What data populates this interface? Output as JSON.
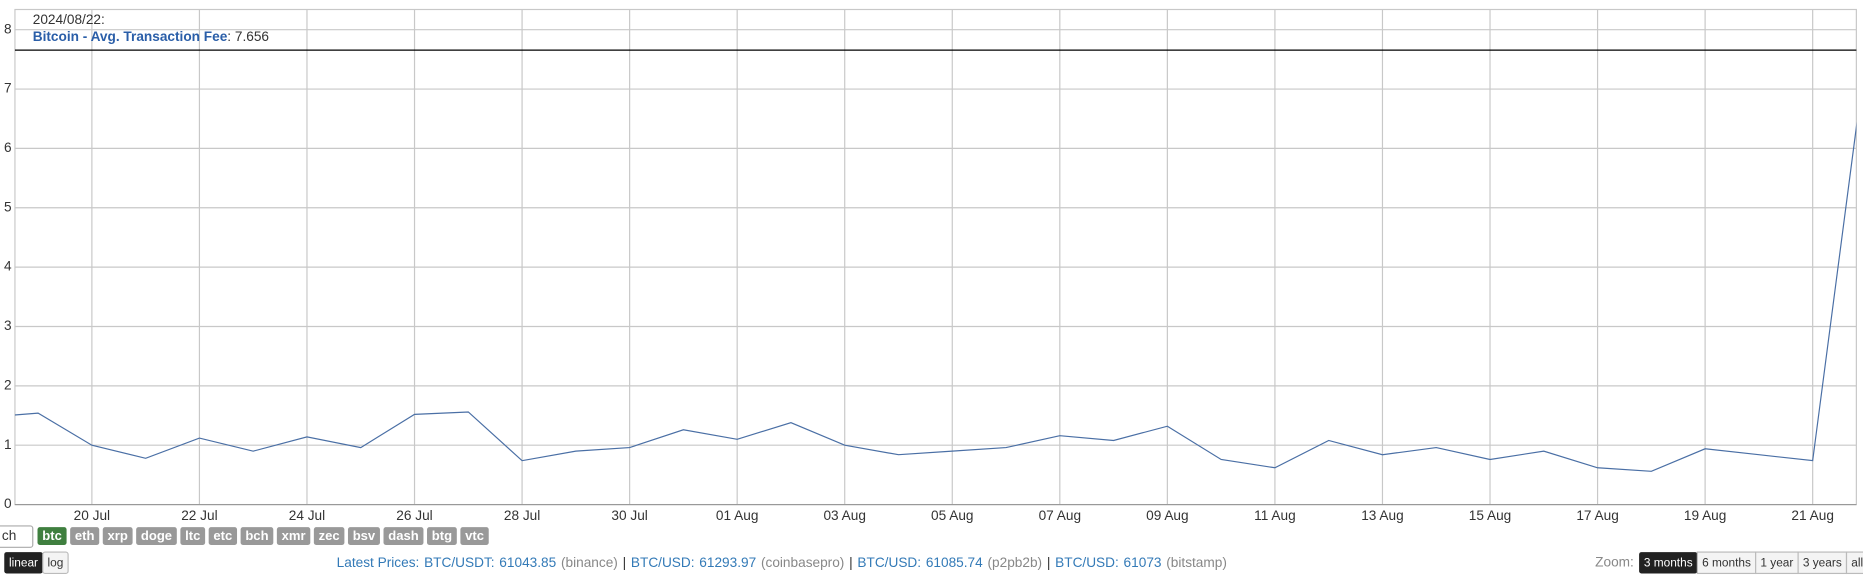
{
  "chart_data": {
    "type": "line",
    "x": [
      "2024-07-18",
      "2024-07-19",
      "2024-07-20",
      "2024-07-21",
      "2024-07-22",
      "2024-07-23",
      "2024-07-24",
      "2024-07-25",
      "2024-07-26",
      "2024-07-27",
      "2024-07-28",
      "2024-07-29",
      "2024-07-30",
      "2024-07-31",
      "2024-08-01",
      "2024-08-02",
      "2024-08-03",
      "2024-08-04",
      "2024-08-05",
      "2024-08-06",
      "2024-08-07",
      "2024-08-08",
      "2024-08-09",
      "2024-08-10",
      "2024-08-11",
      "2024-08-12",
      "2024-08-13",
      "2024-08-14",
      "2024-08-15",
      "2024-08-16",
      "2024-08-17",
      "2024-08-18",
      "2024-08-19",
      "2024-08-20",
      "2024-08-21",
      "2024-08-22"
    ],
    "series": [
      {
        "name": "Bitcoin - Avg. Transaction Fee",
        "color": "#4a6fa5",
        "values": [
          1.47,
          1.54,
          1.0,
          0.78,
          1.12,
          0.9,
          1.14,
          0.96,
          1.52,
          1.56,
          0.74,
          0.9,
          0.96,
          1.26,
          1.1,
          1.38,
          1.0,
          0.84,
          0.9,
          0.96,
          1.16,
          1.08,
          1.32,
          0.76,
          0.62,
          1.08,
          0.84,
          0.96,
          0.76,
          0.9,
          0.62,
          0.56,
          0.94,
          0.84,
          0.74,
          7.656
        ]
      }
    ],
    "xlim": [
      "2024-07-18T13:40:00Z",
      "2024-08-21T19:30:00Z"
    ],
    "xticks": [
      {
        "value": "2024-07-20",
        "label": "20 Jul"
      },
      {
        "value": "2024-07-22",
        "label": "22 Jul"
      },
      {
        "value": "2024-07-24",
        "label": "24 Jul"
      },
      {
        "value": "2024-07-26",
        "label": "26 Jul"
      },
      {
        "value": "2024-07-28",
        "label": "28 Jul"
      },
      {
        "value": "2024-07-30",
        "label": "30 Jul"
      },
      {
        "value": "2024-08-01",
        "label": "01 Aug"
      },
      {
        "value": "2024-08-03",
        "label": "03 Aug"
      },
      {
        "value": "2024-08-05",
        "label": "05 Aug"
      },
      {
        "value": "2024-08-07",
        "label": "07 Aug"
      },
      {
        "value": "2024-08-09",
        "label": "09 Aug"
      },
      {
        "value": "2024-08-11",
        "label": "11 Aug"
      },
      {
        "value": "2024-08-13",
        "label": "13 Aug"
      },
      {
        "value": "2024-08-15",
        "label": "15 Aug"
      },
      {
        "value": "2024-08-17",
        "label": "17 Aug"
      },
      {
        "value": "2024-08-19",
        "label": "19 Aug"
      },
      {
        "value": "2024-08-21",
        "label": "21 Aug"
      }
    ],
    "ylim": [
      0,
      8.34
    ],
    "yticks": [
      0,
      1,
      2,
      3,
      4,
      5,
      6,
      7,
      8
    ],
    "grid": true,
    "tooltip": {
      "date": "2024/08/22:",
      "value": 7.656,
      "value_label": ": 7.656"
    }
  },
  "controls": {
    "search": "ch",
    "coins": [
      "btc",
      "eth",
      "xrp",
      "doge",
      "ltc",
      "etc",
      "bch",
      "xmr",
      "zec",
      "bsv",
      "dash",
      "btg",
      "vtc"
    ],
    "active_coin": 0,
    "scales": [
      "linear",
      "log"
    ],
    "active_scale": 0,
    "latest_prices": {
      "label": "Latest Prices:",
      "separator": "|",
      "items": [
        {
          "pair": "BTC/USDT:",
          "price": 61043.85,
          "exchange": "(binance)"
        },
        {
          "pair": "BTC/USD:",
          "price": 61293.97,
          "exchange": "(coinbasepro)"
        },
        {
          "pair": "BTC/USD:",
          "price": 61085.74,
          "exchange": "(p2pb2b)"
        },
        {
          "pair": "BTC/USD:",
          "price": 61073,
          "exchange": "(bitstamp)"
        }
      ]
    },
    "zoom": {
      "label": "Zoom:",
      "options": [
        "3 months",
        "6 months",
        "1 year",
        "3 years",
        "all time"
      ],
      "active": 0
    }
  }
}
